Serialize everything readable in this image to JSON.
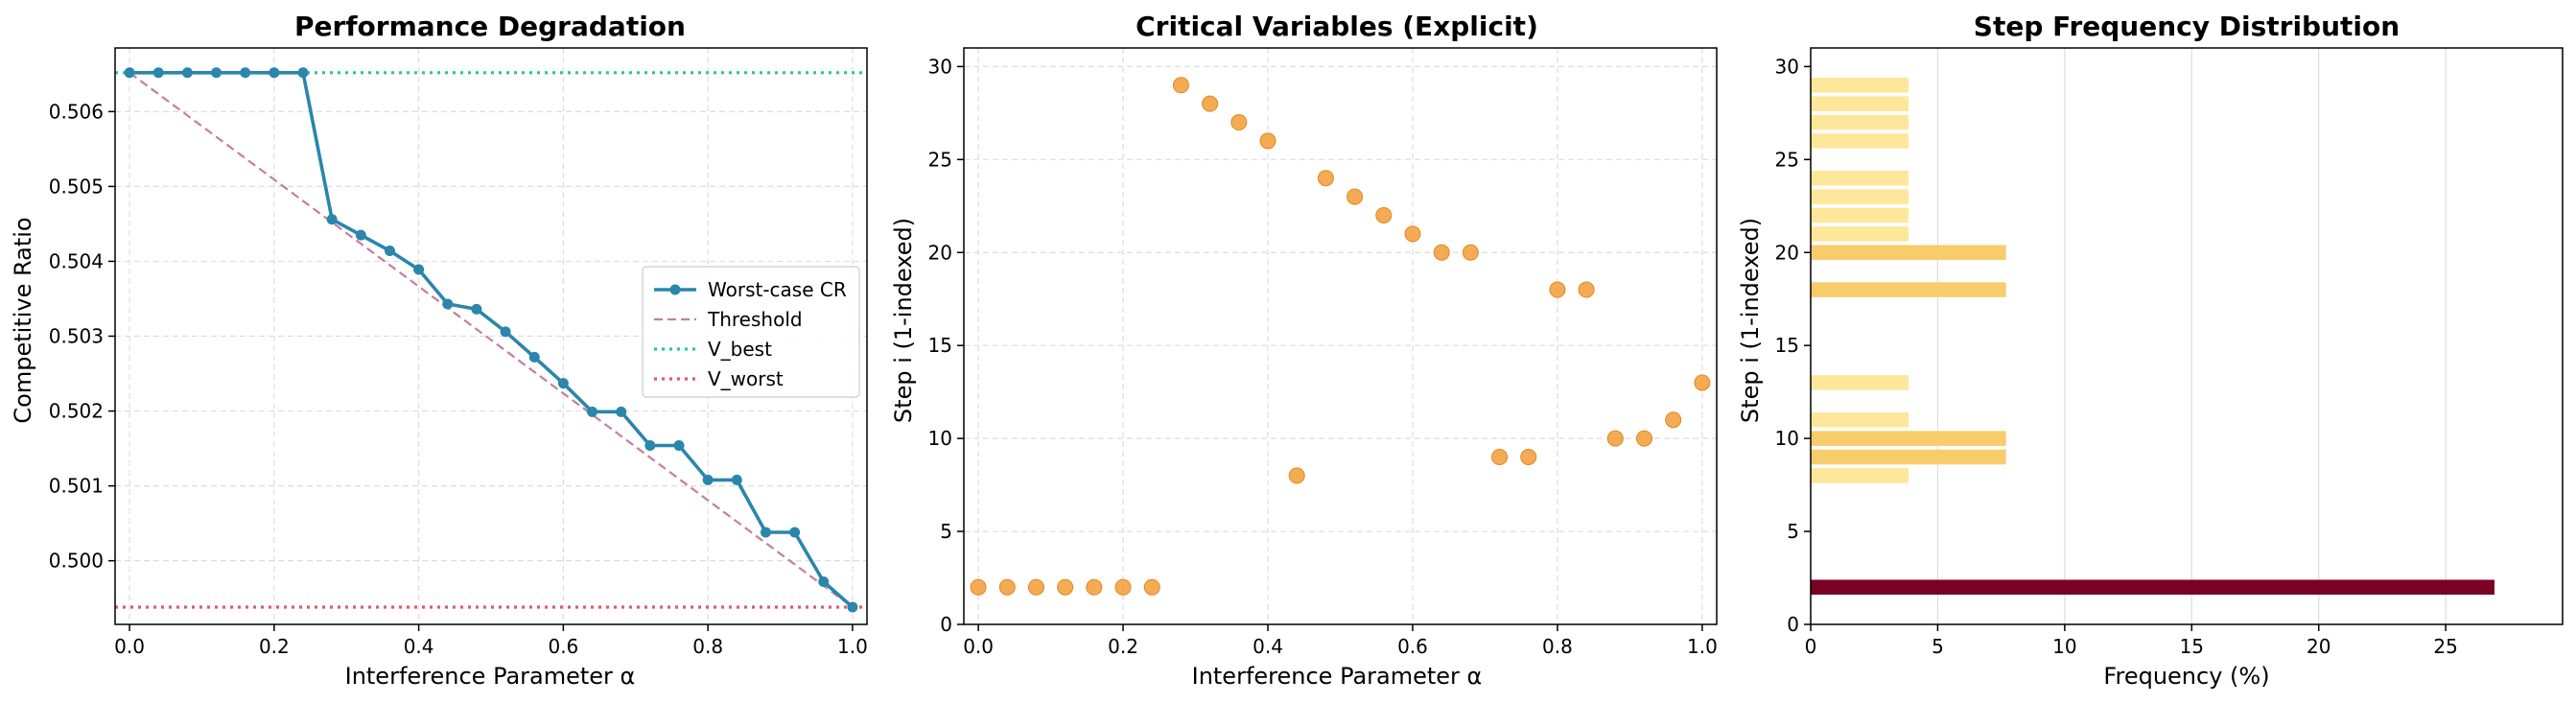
{
  "chart_data": [
    {
      "type": "line",
      "title": "Performance Degradation",
      "xlabel": "Interference Parameter α",
      "ylabel": "Competitive Ratio",
      "xlim": [
        -0.02,
        1.02
      ],
      "ylim": [
        0.49915,
        0.50685
      ],
      "xticks": [
        0,
        0.2,
        0.4,
        0.6,
        0.8,
        1.0
      ],
      "xtick_labels": [
        "0.0",
        "0.2",
        "0.4",
        "0.6",
        "0.8",
        "1.0"
      ],
      "yticks": [
        0.5,
        0.501,
        0.502,
        0.503,
        0.504,
        0.505,
        0.506
      ],
      "ytick_labels": [
        "0.500",
        "0.501",
        "0.502",
        "0.503",
        "0.504",
        "0.505",
        "0.506"
      ],
      "grid": true,
      "legend_position": "center-right",
      "series": [
        {
          "name": "Worst-case CR",
          "style": "line-marker",
          "color": "#2a86ab",
          "x": [
            0.0,
            0.04,
            0.08,
            0.12,
            0.16,
            0.2,
            0.24,
            0.28,
            0.32,
            0.36,
            0.4,
            0.44,
            0.48,
            0.52,
            0.56,
            0.6,
            0.64,
            0.68,
            0.72,
            0.76,
            0.8,
            0.84,
            0.88,
            0.92,
            0.96,
            1.0
          ],
          "y": [
            0.50652,
            0.50652,
            0.50652,
            0.50652,
            0.50652,
            0.50652,
            0.50652,
            0.50456,
            0.50435,
            0.50414,
            0.50389,
            0.50343,
            0.50336,
            0.50306,
            0.50272,
            0.50237,
            0.50199,
            0.50199,
            0.50154,
            0.50154,
            0.50108,
            0.50108,
            0.50038,
            0.50038,
            0.49972,
            0.49938
          ]
        },
        {
          "name": "Threshold",
          "style": "dashed",
          "color": "#c47f9b",
          "x": [
            0,
            1
          ],
          "y": [
            0.50652,
            0.49938
          ]
        },
        {
          "name": "V_best",
          "style": "dotted",
          "color": "#2ec4a0",
          "x": [
            -0.02,
            1.02
          ],
          "y": [
            0.50652,
            0.50652
          ]
        },
        {
          "name": "V_worst",
          "style": "dotted",
          "color": "#e05a6a",
          "x": [
            -0.02,
            1.02
          ],
          "y": [
            0.49938,
            0.49938
          ]
        }
      ]
    },
    {
      "type": "scatter",
      "title": "Critical Variables (Explicit)",
      "xlabel": "Interference Parameter α",
      "ylabel": "Step i (1-indexed)",
      "xlim": [
        -0.02,
        1.02
      ],
      "ylim": [
        0,
        31
      ],
      "xticks": [
        0,
        0.2,
        0.4,
        0.6,
        0.8,
        1.0
      ],
      "xtick_labels": [
        "0.0",
        "0.2",
        "0.4",
        "0.6",
        "0.8",
        "1.0"
      ],
      "yticks": [
        0,
        5,
        10,
        15,
        20,
        25,
        30
      ],
      "ytick_labels": [
        "0",
        "5",
        "10",
        "15",
        "20",
        "25",
        "30"
      ],
      "grid": true,
      "color": "#f39c35",
      "x": [
        0.0,
        0.04,
        0.08,
        0.12,
        0.16,
        0.2,
        0.24,
        0.28,
        0.32,
        0.36,
        0.4,
        0.44,
        0.48,
        0.52,
        0.56,
        0.6,
        0.64,
        0.68,
        0.72,
        0.76,
        0.8,
        0.84,
        0.88,
        0.92,
        0.96,
        1.0
      ],
      "y": [
        2,
        2,
        2,
        2,
        2,
        2,
        2,
        29,
        28,
        27,
        26,
        8,
        24,
        23,
        22,
        21,
        20,
        20,
        9,
        9,
        18,
        18,
        10,
        10,
        11,
        13
      ]
    },
    {
      "type": "bar",
      "orientation": "horizontal",
      "title": "Step Frequency Distribution",
      "xlabel": "Frequency (%)",
      "ylabel": "Step i (1-indexed)",
      "xlim": [
        0,
        29.6
      ],
      "ylim": [
        0,
        31
      ],
      "xticks": [
        0,
        5,
        10,
        15,
        20,
        25
      ],
      "xtick_labels": [
        "0",
        "5",
        "10",
        "15",
        "20",
        "25"
      ],
      "yticks": [
        0,
        5,
        10,
        15,
        20,
        25,
        30
      ],
      "ytick_labels": [
        "0",
        "5",
        "10",
        "15",
        "20",
        "25",
        "30"
      ],
      "grid": true,
      "categories": [
        2,
        8,
        9,
        10,
        11,
        13,
        18,
        20,
        21,
        22,
        23,
        24,
        26,
        27,
        28,
        29
      ],
      "values": [
        26.92,
        3.85,
        7.69,
        7.69,
        3.85,
        3.85,
        7.69,
        7.69,
        3.85,
        3.85,
        3.85,
        3.85,
        3.85,
        3.85,
        3.85,
        3.85
      ],
      "colors": [
        "#7b0026",
        "#fde79a",
        "#f8cc6b",
        "#f8cc6b",
        "#fde79a",
        "#fde79a",
        "#f8cc6b",
        "#f8cc6b",
        "#fde79a",
        "#fde79a",
        "#fde79a",
        "#fde79a",
        "#fde79a",
        "#fde79a",
        "#fde79a",
        "#fde79a"
      ]
    }
  ]
}
